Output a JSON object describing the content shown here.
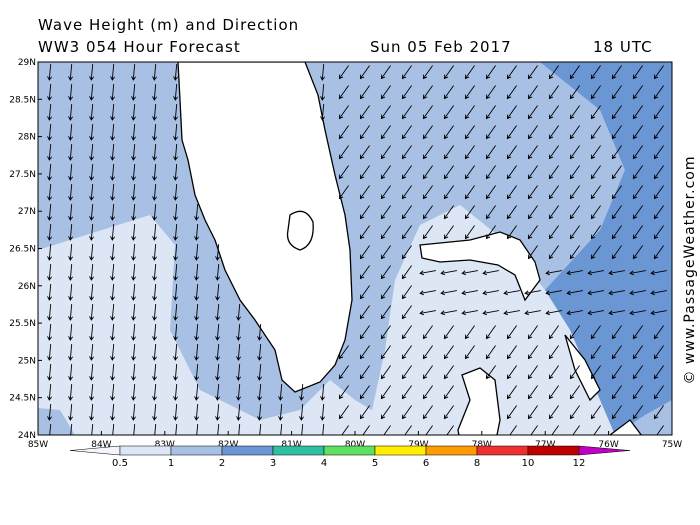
{
  "header": {
    "title": "Wave Height (m) and Direction",
    "forecast": "WW3 054 Hour Forecast",
    "date": "Sun 05 Feb 2017",
    "time": "18 UTC"
  },
  "map": {
    "lat_labels": [
      "29N",
      "28.5N",
      "28N",
      "27.5N",
      "27N",
      "26.5N",
      "26N",
      "25.5N",
      "25N",
      "24.5N",
      "24N"
    ],
    "lon_labels": [
      "85W",
      "84W",
      "83W",
      "82W",
      "81W",
      "80W",
      "79W",
      "78W",
      "77W",
      "76W",
      "75W"
    ]
  },
  "colorbar": {
    "levels": [
      0.5,
      1,
      2,
      3,
      4,
      5,
      6,
      8,
      10,
      12
    ]
  },
  "watermark": "© www.PassageWeather.com"
}
